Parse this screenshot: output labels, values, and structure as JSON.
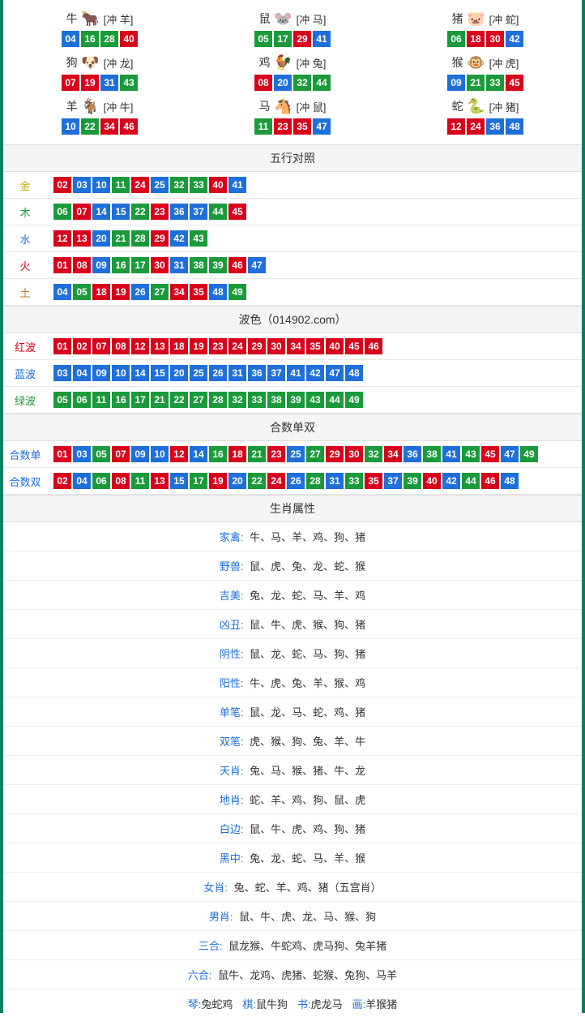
{
  "colors": {
    "red": "#d9001b",
    "blue": "#1e6fd9",
    "green": "#1a9a3a"
  },
  "zodiac": [
    {
      "name": "牛",
      "emoji": "🐂",
      "iconColor": "#c0392b",
      "chong": "[冲 羊]",
      "nums": [
        {
          "n": "04",
          "c": "blue"
        },
        {
          "n": "16",
          "c": "green"
        },
        {
          "n": "28",
          "c": "green"
        },
        {
          "n": "40",
          "c": "red"
        }
      ]
    },
    {
      "name": "鼠",
      "emoji": "🐭",
      "iconColor": "#4aa3df",
      "chong": "[冲 马]",
      "nums": [
        {
          "n": "05",
          "c": "green"
        },
        {
          "n": "17",
          "c": "green"
        },
        {
          "n": "29",
          "c": "red"
        },
        {
          "n": "41",
          "c": "blue"
        }
      ]
    },
    {
      "name": "猪",
      "emoji": "🐷",
      "iconColor": "#e08ea1",
      "chong": "[冲 蛇]",
      "nums": [
        {
          "n": "06",
          "c": "green"
        },
        {
          "n": "18",
          "c": "red"
        },
        {
          "n": "30",
          "c": "red"
        },
        {
          "n": "42",
          "c": "blue"
        }
      ]
    },
    {
      "name": "狗",
      "emoji": "🐶",
      "iconColor": "#8fb6e0",
      "chong": "[冲 龙]",
      "nums": [
        {
          "n": "07",
          "c": "red"
        },
        {
          "n": "19",
          "c": "red"
        },
        {
          "n": "31",
          "c": "blue"
        },
        {
          "n": "43",
          "c": "green"
        }
      ]
    },
    {
      "name": "鸡",
      "emoji": "🐓",
      "iconColor": "#e0c040",
      "chong": "[冲 兔]",
      "nums": [
        {
          "n": "08",
          "c": "red"
        },
        {
          "n": "20",
          "c": "blue"
        },
        {
          "n": "32",
          "c": "green"
        },
        {
          "n": "44",
          "c": "green"
        }
      ]
    },
    {
      "name": "猴",
      "emoji": "🐵",
      "iconColor": "#d0853a",
      "chong": "[冲 虎]",
      "nums": [
        {
          "n": "09",
          "c": "blue"
        },
        {
          "n": "21",
          "c": "green"
        },
        {
          "n": "33",
          "c": "green"
        },
        {
          "n": "45",
          "c": "red"
        }
      ]
    },
    {
      "name": "羊",
      "emoji": "🐐",
      "iconColor": "#d4b23a",
      "chong": "[冲 牛]",
      "nums": [
        {
          "n": "10",
          "c": "blue"
        },
        {
          "n": "22",
          "c": "green"
        },
        {
          "n": "34",
          "c": "red"
        },
        {
          "n": "46",
          "c": "red"
        }
      ]
    },
    {
      "name": "马",
      "emoji": "🐴",
      "iconColor": "#c44a2f",
      "chong": "[冲 鼠]",
      "nums": [
        {
          "n": "11",
          "c": "green"
        },
        {
          "n": "23",
          "c": "red"
        },
        {
          "n": "35",
          "c": "red"
        },
        {
          "n": "47",
          "c": "blue"
        }
      ]
    },
    {
      "name": "蛇",
      "emoji": "🐍",
      "iconColor": "#3fae3f",
      "chong": "[冲 猪]",
      "nums": [
        {
          "n": "12",
          "c": "red"
        },
        {
          "n": "24",
          "c": "red"
        },
        {
          "n": "36",
          "c": "blue"
        },
        {
          "n": "48",
          "c": "blue"
        }
      ]
    }
  ],
  "wuxing": {
    "title": "五行对照",
    "rows": [
      {
        "label": "金",
        "labelColor": "#c9a400",
        "nums": [
          {
            "n": "02",
            "c": "red"
          },
          {
            "n": "03",
            "c": "blue"
          },
          {
            "n": "10",
            "c": "blue"
          },
          {
            "n": "11",
            "c": "green"
          },
          {
            "n": "24",
            "c": "red"
          },
          {
            "n": "25",
            "c": "blue"
          },
          {
            "n": "32",
            "c": "green"
          },
          {
            "n": "33",
            "c": "green"
          },
          {
            "n": "40",
            "c": "red"
          },
          {
            "n": "41",
            "c": "blue"
          }
        ]
      },
      {
        "label": "木",
        "labelColor": "#1a9a3a",
        "nums": [
          {
            "n": "06",
            "c": "green"
          },
          {
            "n": "07",
            "c": "red"
          },
          {
            "n": "14",
            "c": "blue"
          },
          {
            "n": "15",
            "c": "blue"
          },
          {
            "n": "22",
            "c": "green"
          },
          {
            "n": "23",
            "c": "red"
          },
          {
            "n": "36",
            "c": "blue"
          },
          {
            "n": "37",
            "c": "blue"
          },
          {
            "n": "44",
            "c": "green"
          },
          {
            "n": "45",
            "c": "red"
          }
        ]
      },
      {
        "label": "水",
        "labelColor": "#1e6fd9",
        "nums": [
          {
            "n": "12",
            "c": "red"
          },
          {
            "n": "13",
            "c": "red"
          },
          {
            "n": "20",
            "c": "blue"
          },
          {
            "n": "21",
            "c": "green"
          },
          {
            "n": "28",
            "c": "green"
          },
          {
            "n": "29",
            "c": "red"
          },
          {
            "n": "42",
            "c": "blue"
          },
          {
            "n": "43",
            "c": "green"
          }
        ]
      },
      {
        "label": "火",
        "labelColor": "#d9001b",
        "nums": [
          {
            "n": "01",
            "c": "red"
          },
          {
            "n": "08",
            "c": "red"
          },
          {
            "n": "09",
            "c": "blue"
          },
          {
            "n": "16",
            "c": "green"
          },
          {
            "n": "17",
            "c": "green"
          },
          {
            "n": "30",
            "c": "red"
          },
          {
            "n": "31",
            "c": "blue"
          },
          {
            "n": "38",
            "c": "green"
          },
          {
            "n": "39",
            "c": "green"
          },
          {
            "n": "46",
            "c": "red"
          },
          {
            "n": "47",
            "c": "blue"
          }
        ]
      },
      {
        "label": "土",
        "labelColor": "#b07b2a",
        "nums": [
          {
            "n": "04",
            "c": "blue"
          },
          {
            "n": "05",
            "c": "green"
          },
          {
            "n": "18",
            "c": "red"
          },
          {
            "n": "19",
            "c": "red"
          },
          {
            "n": "26",
            "c": "blue"
          },
          {
            "n": "27",
            "c": "green"
          },
          {
            "n": "34",
            "c": "red"
          },
          {
            "n": "35",
            "c": "red"
          },
          {
            "n": "48",
            "c": "blue"
          },
          {
            "n": "49",
            "c": "green"
          }
        ]
      }
    ]
  },
  "bose": {
    "title": "波色（014902.com）",
    "rows": [
      {
        "label": "红波",
        "labelColor": "#d9001b",
        "nums": [
          {
            "n": "01",
            "c": "red"
          },
          {
            "n": "02",
            "c": "red"
          },
          {
            "n": "07",
            "c": "red"
          },
          {
            "n": "08",
            "c": "red"
          },
          {
            "n": "12",
            "c": "red"
          },
          {
            "n": "13",
            "c": "red"
          },
          {
            "n": "18",
            "c": "red"
          },
          {
            "n": "19",
            "c": "red"
          },
          {
            "n": "23",
            "c": "red"
          },
          {
            "n": "24",
            "c": "red"
          },
          {
            "n": "29",
            "c": "red"
          },
          {
            "n": "30",
            "c": "red"
          },
          {
            "n": "34",
            "c": "red"
          },
          {
            "n": "35",
            "c": "red"
          },
          {
            "n": "40",
            "c": "red"
          },
          {
            "n": "45",
            "c": "red"
          },
          {
            "n": "46",
            "c": "red"
          }
        ]
      },
      {
        "label": "蓝波",
        "labelColor": "#1e6fd9",
        "nums": [
          {
            "n": "03",
            "c": "blue"
          },
          {
            "n": "04",
            "c": "blue"
          },
          {
            "n": "09",
            "c": "blue"
          },
          {
            "n": "10",
            "c": "blue"
          },
          {
            "n": "14",
            "c": "blue"
          },
          {
            "n": "15",
            "c": "blue"
          },
          {
            "n": "20",
            "c": "blue"
          },
          {
            "n": "25",
            "c": "blue"
          },
          {
            "n": "26",
            "c": "blue"
          },
          {
            "n": "31",
            "c": "blue"
          },
          {
            "n": "36",
            "c": "blue"
          },
          {
            "n": "37",
            "c": "blue"
          },
          {
            "n": "41",
            "c": "blue"
          },
          {
            "n": "42",
            "c": "blue"
          },
          {
            "n": "47",
            "c": "blue"
          },
          {
            "n": "48",
            "c": "blue"
          }
        ]
      },
      {
        "label": "绿波",
        "labelColor": "#1a9a3a",
        "nums": [
          {
            "n": "05",
            "c": "green"
          },
          {
            "n": "06",
            "c": "green"
          },
          {
            "n": "11",
            "c": "green"
          },
          {
            "n": "16",
            "c": "green"
          },
          {
            "n": "17",
            "c": "green"
          },
          {
            "n": "21",
            "c": "green"
          },
          {
            "n": "22",
            "c": "green"
          },
          {
            "n": "27",
            "c": "green"
          },
          {
            "n": "28",
            "c": "green"
          },
          {
            "n": "32",
            "c": "green"
          },
          {
            "n": "33",
            "c": "green"
          },
          {
            "n": "38",
            "c": "green"
          },
          {
            "n": "39",
            "c": "green"
          },
          {
            "n": "43",
            "c": "green"
          },
          {
            "n": "44",
            "c": "green"
          },
          {
            "n": "49",
            "c": "green"
          }
        ]
      }
    ]
  },
  "heshu": {
    "title": "合数单双",
    "rows": [
      {
        "label": "合数单",
        "labelColor": "#1e6fd9",
        "nums": [
          {
            "n": "01",
            "c": "red"
          },
          {
            "n": "03",
            "c": "blue"
          },
          {
            "n": "05",
            "c": "green"
          },
          {
            "n": "07",
            "c": "red"
          },
          {
            "n": "09",
            "c": "blue"
          },
          {
            "n": "10",
            "c": "blue"
          },
          {
            "n": "12",
            "c": "red"
          },
          {
            "n": "14",
            "c": "blue"
          },
          {
            "n": "16",
            "c": "green"
          },
          {
            "n": "18",
            "c": "red"
          },
          {
            "n": "21",
            "c": "green"
          },
          {
            "n": "23",
            "c": "red"
          },
          {
            "n": "25",
            "c": "blue"
          },
          {
            "n": "27",
            "c": "green"
          },
          {
            "n": "29",
            "c": "red"
          },
          {
            "n": "30",
            "c": "red"
          },
          {
            "n": "32",
            "c": "green"
          },
          {
            "n": "34",
            "c": "red"
          },
          {
            "n": "36",
            "c": "blue"
          },
          {
            "n": "38",
            "c": "green"
          },
          {
            "n": "41",
            "c": "blue"
          },
          {
            "n": "43",
            "c": "green"
          },
          {
            "n": "45",
            "c": "red"
          },
          {
            "n": "47",
            "c": "blue"
          },
          {
            "n": "49",
            "c": "green"
          }
        ]
      },
      {
        "label": "合数双",
        "labelColor": "#1e6fd9",
        "nums": [
          {
            "n": "02",
            "c": "red"
          },
          {
            "n": "04",
            "c": "blue"
          },
          {
            "n": "06",
            "c": "green"
          },
          {
            "n": "08",
            "c": "red"
          },
          {
            "n": "11",
            "c": "green"
          },
          {
            "n": "13",
            "c": "red"
          },
          {
            "n": "15",
            "c": "blue"
          },
          {
            "n": "17",
            "c": "green"
          },
          {
            "n": "19",
            "c": "red"
          },
          {
            "n": "20",
            "c": "blue"
          },
          {
            "n": "22",
            "c": "green"
          },
          {
            "n": "24",
            "c": "red"
          },
          {
            "n": "26",
            "c": "blue"
          },
          {
            "n": "28",
            "c": "green"
          },
          {
            "n": "31",
            "c": "blue"
          },
          {
            "n": "33",
            "c": "green"
          },
          {
            "n": "35",
            "c": "red"
          },
          {
            "n": "37",
            "c": "blue"
          },
          {
            "n": "39",
            "c": "green"
          },
          {
            "n": "40",
            "c": "red"
          },
          {
            "n": "42",
            "c": "blue"
          },
          {
            "n": "44",
            "c": "green"
          },
          {
            "n": "46",
            "c": "red"
          },
          {
            "n": "48",
            "c": "blue"
          }
        ]
      }
    ]
  },
  "attrs": {
    "title": "生肖属性",
    "rows": [
      {
        "label": "家禽:",
        "labelColor": "#1e6fd9",
        "text": "牛、马、羊、鸡、狗、猪"
      },
      {
        "label": "野兽:",
        "labelColor": "#1e6fd9",
        "text": "鼠、虎、兔、龙、蛇、猴"
      },
      {
        "label": "吉美:",
        "labelColor": "#1e6fd9",
        "text": "兔、龙、蛇、马、羊、鸡"
      },
      {
        "label": "凶丑:",
        "labelColor": "#1e6fd9",
        "text": "鼠、牛、虎、猴、狗、猪"
      },
      {
        "label": "阴性:",
        "labelColor": "#1e6fd9",
        "text": "鼠、龙、蛇、马、狗、猪"
      },
      {
        "label": "阳性:",
        "labelColor": "#1e6fd9",
        "text": "牛、虎、兔、羊、猴、鸡"
      },
      {
        "label": "单笔:",
        "labelColor": "#1e6fd9",
        "text": "鼠、龙、马、蛇、鸡、猪"
      },
      {
        "label": "双笔:",
        "labelColor": "#1e6fd9",
        "text": "虎、猴、狗、兔、羊、牛"
      },
      {
        "label": "天肖:",
        "labelColor": "#1e6fd9",
        "text": "兔、马、猴、猪、牛、龙"
      },
      {
        "label": "地肖:",
        "labelColor": "#1e6fd9",
        "text": "蛇、羊、鸡、狗、鼠、虎"
      },
      {
        "label": "白边:",
        "labelColor": "#1e6fd9",
        "text": "鼠、牛、虎、鸡、狗、猪"
      },
      {
        "label": "黑中:",
        "labelColor": "#1e6fd9",
        "text": "兔、龙、蛇、马、羊、猴"
      },
      {
        "label": "女肖:",
        "labelColor": "#1e6fd9",
        "text": "兔、蛇、羊、鸡、猪（五宫肖）"
      },
      {
        "label": "男肖:",
        "labelColor": "#1e6fd9",
        "text": "鼠、牛、虎、龙、马、猴、狗"
      },
      {
        "label": "三合:",
        "labelColor": "#1e6fd9",
        "text": "鼠龙猴、牛蛇鸡、虎马狗、兔羊猪"
      },
      {
        "label": "六合:",
        "labelColor": "#1e6fd9",
        "text": "鼠牛、龙鸡、虎猪、蛇猴、兔狗、马羊"
      }
    ]
  },
  "lastRow": {
    "items": [
      {
        "label": "琴:",
        "labelColor": "#1e6fd9",
        "text": "兔蛇鸡"
      },
      {
        "label": "棋:",
        "labelColor": "#1e6fd9",
        "text": "鼠牛狗"
      },
      {
        "label": "书:",
        "labelColor": "#1e6fd9",
        "text": "虎龙马"
      },
      {
        "label": "画:",
        "labelColor": "#1e6fd9",
        "text": "羊猴猪"
      }
    ]
  }
}
